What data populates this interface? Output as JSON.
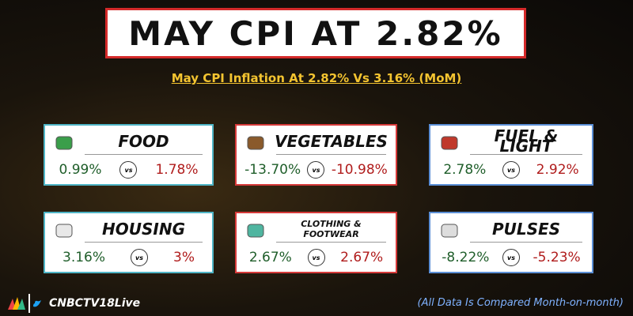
{
  "header": {
    "title": "MAY CPI AT 2.82%",
    "subtitle": "May CPI Inflation At 2.82% Vs 3.16% (MoM)"
  },
  "comparator": "vs",
  "cards": [
    {
      "title": "FOOD",
      "values": [
        "0.99%",
        "1.78%"
      ]
    },
    {
      "title": "VEGETABLES",
      "values": [
        "-13.70%",
        "-10.98%"
      ]
    },
    {
      "title": "FUEL & LIGHT",
      "values": [
        "2.78%",
        "2.92%"
      ]
    },
    {
      "title": "HOUSING",
      "values": [
        "3.16%",
        "3%"
      ]
    },
    {
      "title": "CLOTHING & FOOTWEAR",
      "values": [
        "2.67%",
        "2.67%"
      ]
    },
    {
      "title": "PULSES",
      "values": [
        "-8.22%",
        "-5.23%"
      ]
    }
  ],
  "footer": {
    "handle": "CNBCTV18Live",
    "note": "(All Data Is Compared Month-on-month)"
  }
}
